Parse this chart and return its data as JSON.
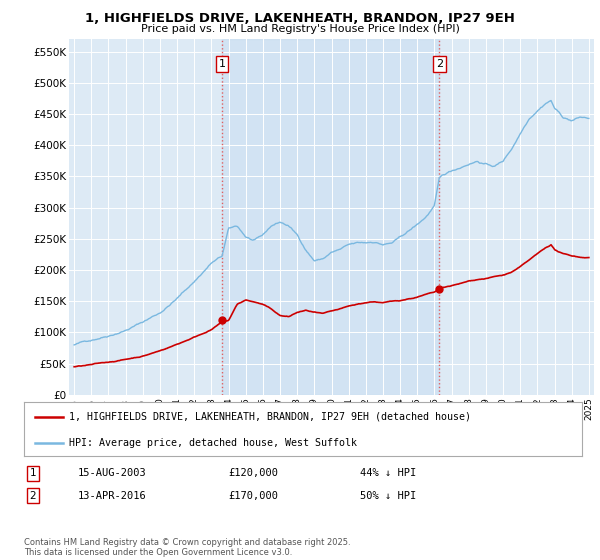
{
  "title": "1, HIGHFIELDS DRIVE, LAKENHEATH, BRANDON, IP27 9EH",
  "subtitle": "Price paid vs. HM Land Registry's House Price Index (HPI)",
  "ylim": [
    0,
    570000
  ],
  "yticks": [
    0,
    50000,
    100000,
    150000,
    200000,
    250000,
    300000,
    350000,
    400000,
    450000,
    500000,
    550000
  ],
  "ytick_labels": [
    "£0",
    "£50K",
    "£100K",
    "£150K",
    "£200K",
    "£250K",
    "£300K",
    "£350K",
    "£400K",
    "£450K",
    "£500K",
    "£550K"
  ],
  "hpi_color": "#7ab8e0",
  "price_color": "#cc0000",
  "vline_color": "#e06060",
  "shade_color": "#d0e8f8",
  "annotation1": {
    "label": "1",
    "year": 2003.62,
    "price": 120000,
    "date": "15-AUG-2003",
    "amount": "£120,000",
    "pct": "44% ↓ HPI"
  },
  "annotation2": {
    "label": "2",
    "year": 2016.28,
    "price": 170000,
    "date": "13-APR-2016",
    "amount": "£170,000",
    "pct": "50% ↓ HPI"
  },
  "legend_line1": "1, HIGHFIELDS DRIVE, LAKENHEATH, BRANDON, IP27 9EH (detached house)",
  "legend_line2": "HPI: Average price, detached house, West Suffolk",
  "footer": "Contains HM Land Registry data © Crown copyright and database right 2025.\nThis data is licensed under the Open Government Licence v3.0.",
  "plot_bg_color": "#ddeaf5"
}
